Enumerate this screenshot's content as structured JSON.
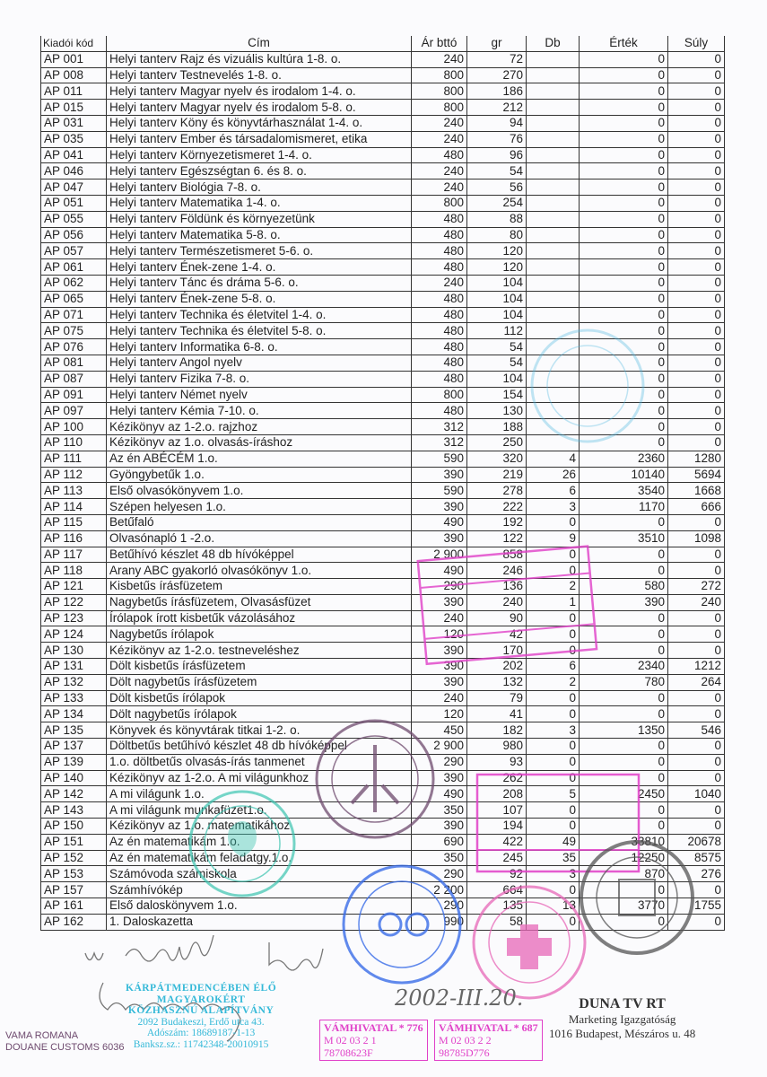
{
  "table": {
    "headers": [
      "Kiadói kód",
      "Cím",
      "Ár bttó",
      "gr",
      "Db",
      "Érték",
      "Súly"
    ],
    "rows": [
      [
        "AP 001",
        "Helyi tanterv Rajz és vizuális kultúra 1-8. o.",
        "240",
        "72",
        "",
        "0",
        "0"
      ],
      [
        "AP 008",
        "Helyi tanterv Testnevelés 1-8. o.",
        "800",
        "270",
        "",
        "0",
        "0"
      ],
      [
        "AP 011",
        "Helyi tanterv Magyar nyelv és irodalom 1-4. o.",
        "800",
        "186",
        "",
        "0",
        "0"
      ],
      [
        "AP 015",
        "Helyi tanterv Magyar nyelv és irodalom 5-8. o.",
        "800",
        "212",
        "",
        "0",
        "0"
      ],
      [
        "AP 031",
        "Helyi tanterv Köny és könyvtárhasználat 1-4. o.",
        "240",
        "94",
        "",
        "0",
        "0"
      ],
      [
        "AP 035",
        "Helyi tanterv Ember és társadalomismeret, etika",
        "240",
        "76",
        "",
        "0",
        "0"
      ],
      [
        "AP 041",
        "Helyi tanterv Környezetismeret 1-4. o.",
        "480",
        "96",
        "",
        "0",
        "0"
      ],
      [
        "AP 046",
        "Helyi tanterv Egészségtan 6. és 8. o.",
        "240",
        "54",
        "",
        "0",
        "0"
      ],
      [
        "AP 047",
        "Helyi tanterv Biológia 7-8. o.",
        "240",
        "56",
        "",
        "0",
        "0"
      ],
      [
        "AP 051",
        "Helyi tanterv Matematika 1-4. o.",
        "800",
        "254",
        "",
        "0",
        "0"
      ],
      [
        "AP 055",
        "Helyi tanterv Földünk és környezetünk",
        "480",
        "88",
        "",
        "0",
        "0"
      ],
      [
        "AP 056",
        "Helyi tanterv Matematika 5-8. o.",
        "480",
        "80",
        "",
        "0",
        "0"
      ],
      [
        "AP 057",
        "Helyi tanterv Természetismeret 5-6. o.",
        "480",
        "120",
        "",
        "0",
        "0"
      ],
      [
        "AP 061",
        "Helyi tanterv Ének-zene 1-4. o.",
        "480",
        "120",
        "",
        "0",
        "0"
      ],
      [
        "AP 062",
        "Helyi tanterv Tánc és dráma 5-6. o.",
        "240",
        "104",
        "",
        "0",
        "0"
      ],
      [
        "AP 065",
        "Helyi tanterv Ének-zene 5-8. o.",
        "480",
        "104",
        "",
        "0",
        "0"
      ],
      [
        "AP 071",
        "Helyi tanterv Technika és életvitel 1-4. o.",
        "480",
        "104",
        "",
        "0",
        "0"
      ],
      [
        "AP 075",
        "Helyi tanterv Technika és életvitel 5-8. o.",
        "480",
        "112",
        "",
        "0",
        "0"
      ],
      [
        "AP 076",
        "Helyi tanterv Informatika 6-8. o.",
        "480",
        "54",
        "",
        "0",
        "0"
      ],
      [
        "AP 081",
        "Helyi tanterv Angol nyelv",
        "480",
        "54",
        "",
        "0",
        "0"
      ],
      [
        "AP 087",
        "Helyi tanterv Fizika 7-8. o.",
        "480",
        "104",
        "",
        "0",
        "0"
      ],
      [
        "AP 091",
        "Helyi tanterv Német nyelv",
        "800",
        "154",
        "",
        "0",
        "0"
      ],
      [
        "AP 097",
        "Helyi tanterv Kémia 7-10. o.",
        "480",
        "130",
        "",
        "0",
        "0"
      ],
      [
        "AP 100",
        "Kézikönyv az 1-2.o. rajzhoz",
        "312",
        "188",
        "",
        "0",
        "0"
      ],
      [
        "AP 110",
        "Kézikönyv az 1.o. olvasás-íráshoz",
        "312",
        "250",
        "",
        "0",
        "0"
      ],
      [
        "AP 111",
        "Az én ABÉCÉM 1.o.",
        "590",
        "320",
        "4",
        "2360",
        "1280"
      ],
      [
        "AP 112",
        "Gyöngybetűk 1.o.",
        "390",
        "219",
        "26",
        "10140",
        "5694"
      ],
      [
        "AP 113",
        "Első olvasókönyvem 1.o.",
        "590",
        "278",
        "6",
        "3540",
        "1668"
      ],
      [
        "AP 114",
        "Szépen helyesen 1.o.",
        "390",
        "222",
        "3",
        "1170",
        "666"
      ],
      [
        "AP 115",
        "Betűfaló",
        "490",
        "192",
        "0",
        "0",
        "0"
      ],
      [
        "AP 116",
        "Olvasónapló 1 -2.o.",
        "390",
        "122",
        "9",
        "3510",
        "1098"
      ],
      [
        "AP 117",
        "Betűhívó készlet 48 db hívóképpel",
        "2 900",
        "858",
        "0",
        "0",
        "0"
      ],
      [
        "AP 118",
        "Arany ABC gyakorló olvasókönyv 1.o.",
        "490",
        "246",
        "0",
        "0",
        "0"
      ],
      [
        "AP 121",
        "Kisbetűs írásfüzetem",
        "290",
        "136",
        "2",
        "580",
        "272"
      ],
      [
        "AP 122",
        "Nagybetűs írásfüzetem, Olvasásfüzet",
        "390",
        "240",
        "1",
        "390",
        "240"
      ],
      [
        "AP 123",
        "Írólapok írott kisbetűk vázolásához",
        "240",
        "90",
        "0",
        "0",
        "0"
      ],
      [
        "AP 124",
        "Nagybetűs írólapok",
        "120",
        "42",
        "0",
        "0",
        "0"
      ],
      [
        "AP 130",
        "Kézikönyv az 1-2.o. testneveléshez",
        "390",
        "170",
        "0",
        "0",
        "0"
      ],
      [
        "AP 131",
        "Dölt kisbetűs írásfüzetem",
        "390",
        "202",
        "6",
        "2340",
        "1212"
      ],
      [
        "AP 132",
        "Dölt nagybetűs írásfüzetem",
        "390",
        "132",
        "2",
        "780",
        "264"
      ],
      [
        "AP 133",
        "Dölt kisbetűs írólapok",
        "240",
        "79",
        "0",
        "0",
        "0"
      ],
      [
        "AP 134",
        "Dölt nagybetűs írólapok",
        "120",
        "41",
        "0",
        "0",
        "0"
      ],
      [
        "AP 135",
        "Könyvek és könyvtárak titkai 1-2. o.",
        "450",
        "182",
        "3",
        "1350",
        "546"
      ],
      [
        "AP 137",
        "Döltbetűs betűhívó készlet 48 db hívóképpel",
        "2 900",
        "980",
        "0",
        "0",
        "0"
      ],
      [
        "AP 139",
        "1.o. döltbetűs olvasás-írás tanmenet",
        "290",
        "93",
        "0",
        "0",
        "0"
      ],
      [
        "AP 140",
        "Kézikönyv az 1-2.o. A mi világunkhoz",
        "390",
        "262",
        "0",
        "0",
        "0"
      ],
      [
        "AP 142",
        "A mi világunk 1.o.",
        "490",
        "208",
        "5",
        "2450",
        "1040"
      ],
      [
        "AP 143",
        "A mi világunk munkafüzet1.o.",
        "350",
        "107",
        "0",
        "0",
        "0"
      ],
      [
        "AP 150",
        "Kézikönyv az 1.o. matematikához",
        "390",
        "194",
        "0",
        "0",
        "0"
      ],
      [
        "AP 151",
        "Az én matematikám 1.o.",
        "690",
        "422",
        "49",
        "33810",
        "20678"
      ],
      [
        "AP 152",
        "Az én matematikám feladatgy.1.o.",
        "350",
        "245",
        "35",
        "12250",
        "8575"
      ],
      [
        "AP 153",
        "Számóvoda számiskola",
        "290",
        "92",
        "3",
        "870",
        "276"
      ],
      [
        "AP 157",
        "Számhívókép",
        "2 200",
        "664",
        "0",
        "0",
        "0"
      ],
      [
        "AP 161",
        "Első daloskönyvem 1.o.",
        "290",
        "135",
        "13",
        "3770",
        "1755"
      ],
      [
        "AP 162",
        "1. Daloskazetta",
        "990",
        "58",
        "0",
        "0",
        "0"
      ]
    ]
  },
  "stamps": {
    "foundation": {
      "name_lines": [
        "KÁRPÁTMEDENCÉBEN ÉLŐ",
        "MAGYAROKÉRT",
        "KÖZHASZNÚ ALAPÍTVÁNY"
      ],
      "address": "2092 Budakeszi, Erdő utca 43.",
      "tax_id": "Adószám: 18689187-1-13",
      "bank": "Banksz.sz.: 11742348-20010915",
      "color": "#35b9d8"
    },
    "duna": {
      "title": "DUNA TV RT",
      "dept": "Marketing Igazgatóság",
      "address": "1016 Budapest, Mészáros u. 48"
    },
    "customs_1": {
      "text": "VÁMHIVATAL * 776",
      "date": "M 02 03 2 1",
      "code": "78708623F",
      "color": "#e040c8"
    },
    "customs_2": {
      "text": "VÁMHIVATAL * 687",
      "date": "M 02 03 2 2",
      "code": "98785D776",
      "color": "#e040c8"
    },
    "vama_romana": {
      "text": "VAMA ROMANA",
      "sub": "DOUANE CUSTOMS 6036",
      "color": "#6e4a6e"
    }
  },
  "handwriting": {
    "date": "2002-III.20."
  }
}
